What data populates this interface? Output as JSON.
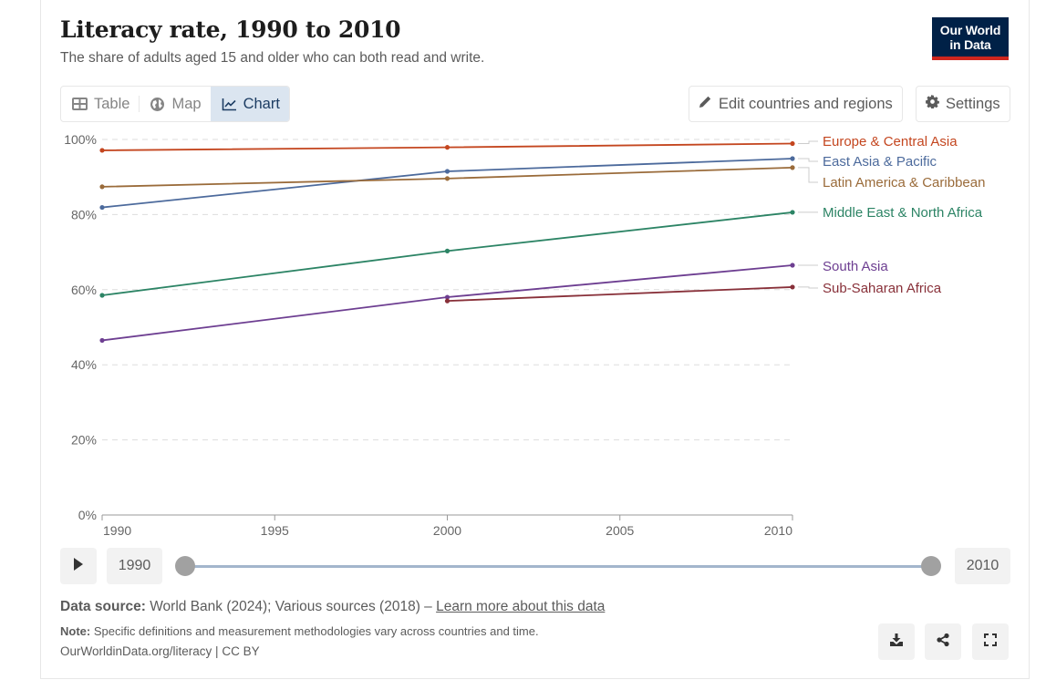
{
  "header": {
    "title": "Literacy rate, 1990 to 2010",
    "subtitle": "The share of adults aged 15 and older who can both read and write.",
    "logo_line1": "Our World",
    "logo_line2": "in Data"
  },
  "tabs": [
    {
      "label": "Table",
      "icon": "table-icon",
      "active": false
    },
    {
      "label": "Map",
      "icon": "globe-icon",
      "active": false
    },
    {
      "label": "Chart",
      "icon": "line-chart-icon",
      "active": true
    }
  ],
  "toolbar": {
    "edit_label": "Edit countries and regions",
    "settings_label": "Settings"
  },
  "colors": {
    "accent": "#1d3d63",
    "logo_bg": "#002147",
    "logo_stripe": "#ce261e"
  },
  "timeline": {
    "start_label": "1990",
    "end_label": "2010",
    "range_start": 1990,
    "range_end": 2010
  },
  "footer": {
    "source_label": "Data source:",
    "source_text": " World Bank (2024); Various sources (2018) – ",
    "learn_more": "Learn more about this data",
    "note_label": "Note:",
    "note_text": " Specific definitions and measurement methodologies vary across countries and time.",
    "origin": "OurWorldinData.org/literacy | CC BY"
  },
  "actions": [
    {
      "name": "download",
      "icon": "download-icon"
    },
    {
      "name": "share",
      "icon": "share-icon"
    },
    {
      "name": "fullscreen",
      "icon": "fullscreen-icon"
    }
  ],
  "chart_data": {
    "type": "line",
    "title": "Literacy rate, 1990 to 2010",
    "subtitle": "The share of adults aged 15 and older who can both read and write.",
    "xlabel": "",
    "ylabel": "",
    "xlim": [
      1990,
      2010
    ],
    "ylim": [
      0,
      100
    ],
    "x_ticks": [
      1990,
      1995,
      2000,
      2005,
      2010
    ],
    "y_ticks": [
      0,
      20,
      40,
      60,
      80,
      100
    ],
    "y_tick_labels": [
      "0%",
      "20%",
      "40%",
      "60%",
      "80%",
      "100%"
    ],
    "grid": "horizontal dashed",
    "legend": "right (inline labels)",
    "series": [
      {
        "name": "Europe & Central Asia",
        "color": "#c4461f",
        "x": [
          1990,
          2000,
          2010
        ],
        "values": [
          97.1,
          97.9,
          98.9
        ]
      },
      {
        "name": "East Asia & Pacific",
        "color": "#4c6a9c",
        "x": [
          1990,
          2000,
          2010
        ],
        "values": [
          81.9,
          91.5,
          94.9
        ]
      },
      {
        "name": "Latin America & Caribbean",
        "color": "#9a6b3a",
        "x": [
          1990,
          2000,
          2010
        ],
        "values": [
          87.4,
          89.6,
          92.5
        ]
      },
      {
        "name": "Middle East & North Africa",
        "color": "#2c8465",
        "x": [
          1990,
          2000,
          2010
        ],
        "values": [
          58.5,
          70.3,
          80.6
        ]
      },
      {
        "name": "South Asia",
        "color": "#6d3e91",
        "x": [
          1990,
          2000,
          2010
        ],
        "values": [
          46.5,
          58.0,
          66.5
        ]
      },
      {
        "name": "Sub-Saharan Africa",
        "color": "#883039",
        "x": [
          2000,
          2010
        ],
        "values": [
          57.0,
          60.7
        ]
      }
    ]
  }
}
